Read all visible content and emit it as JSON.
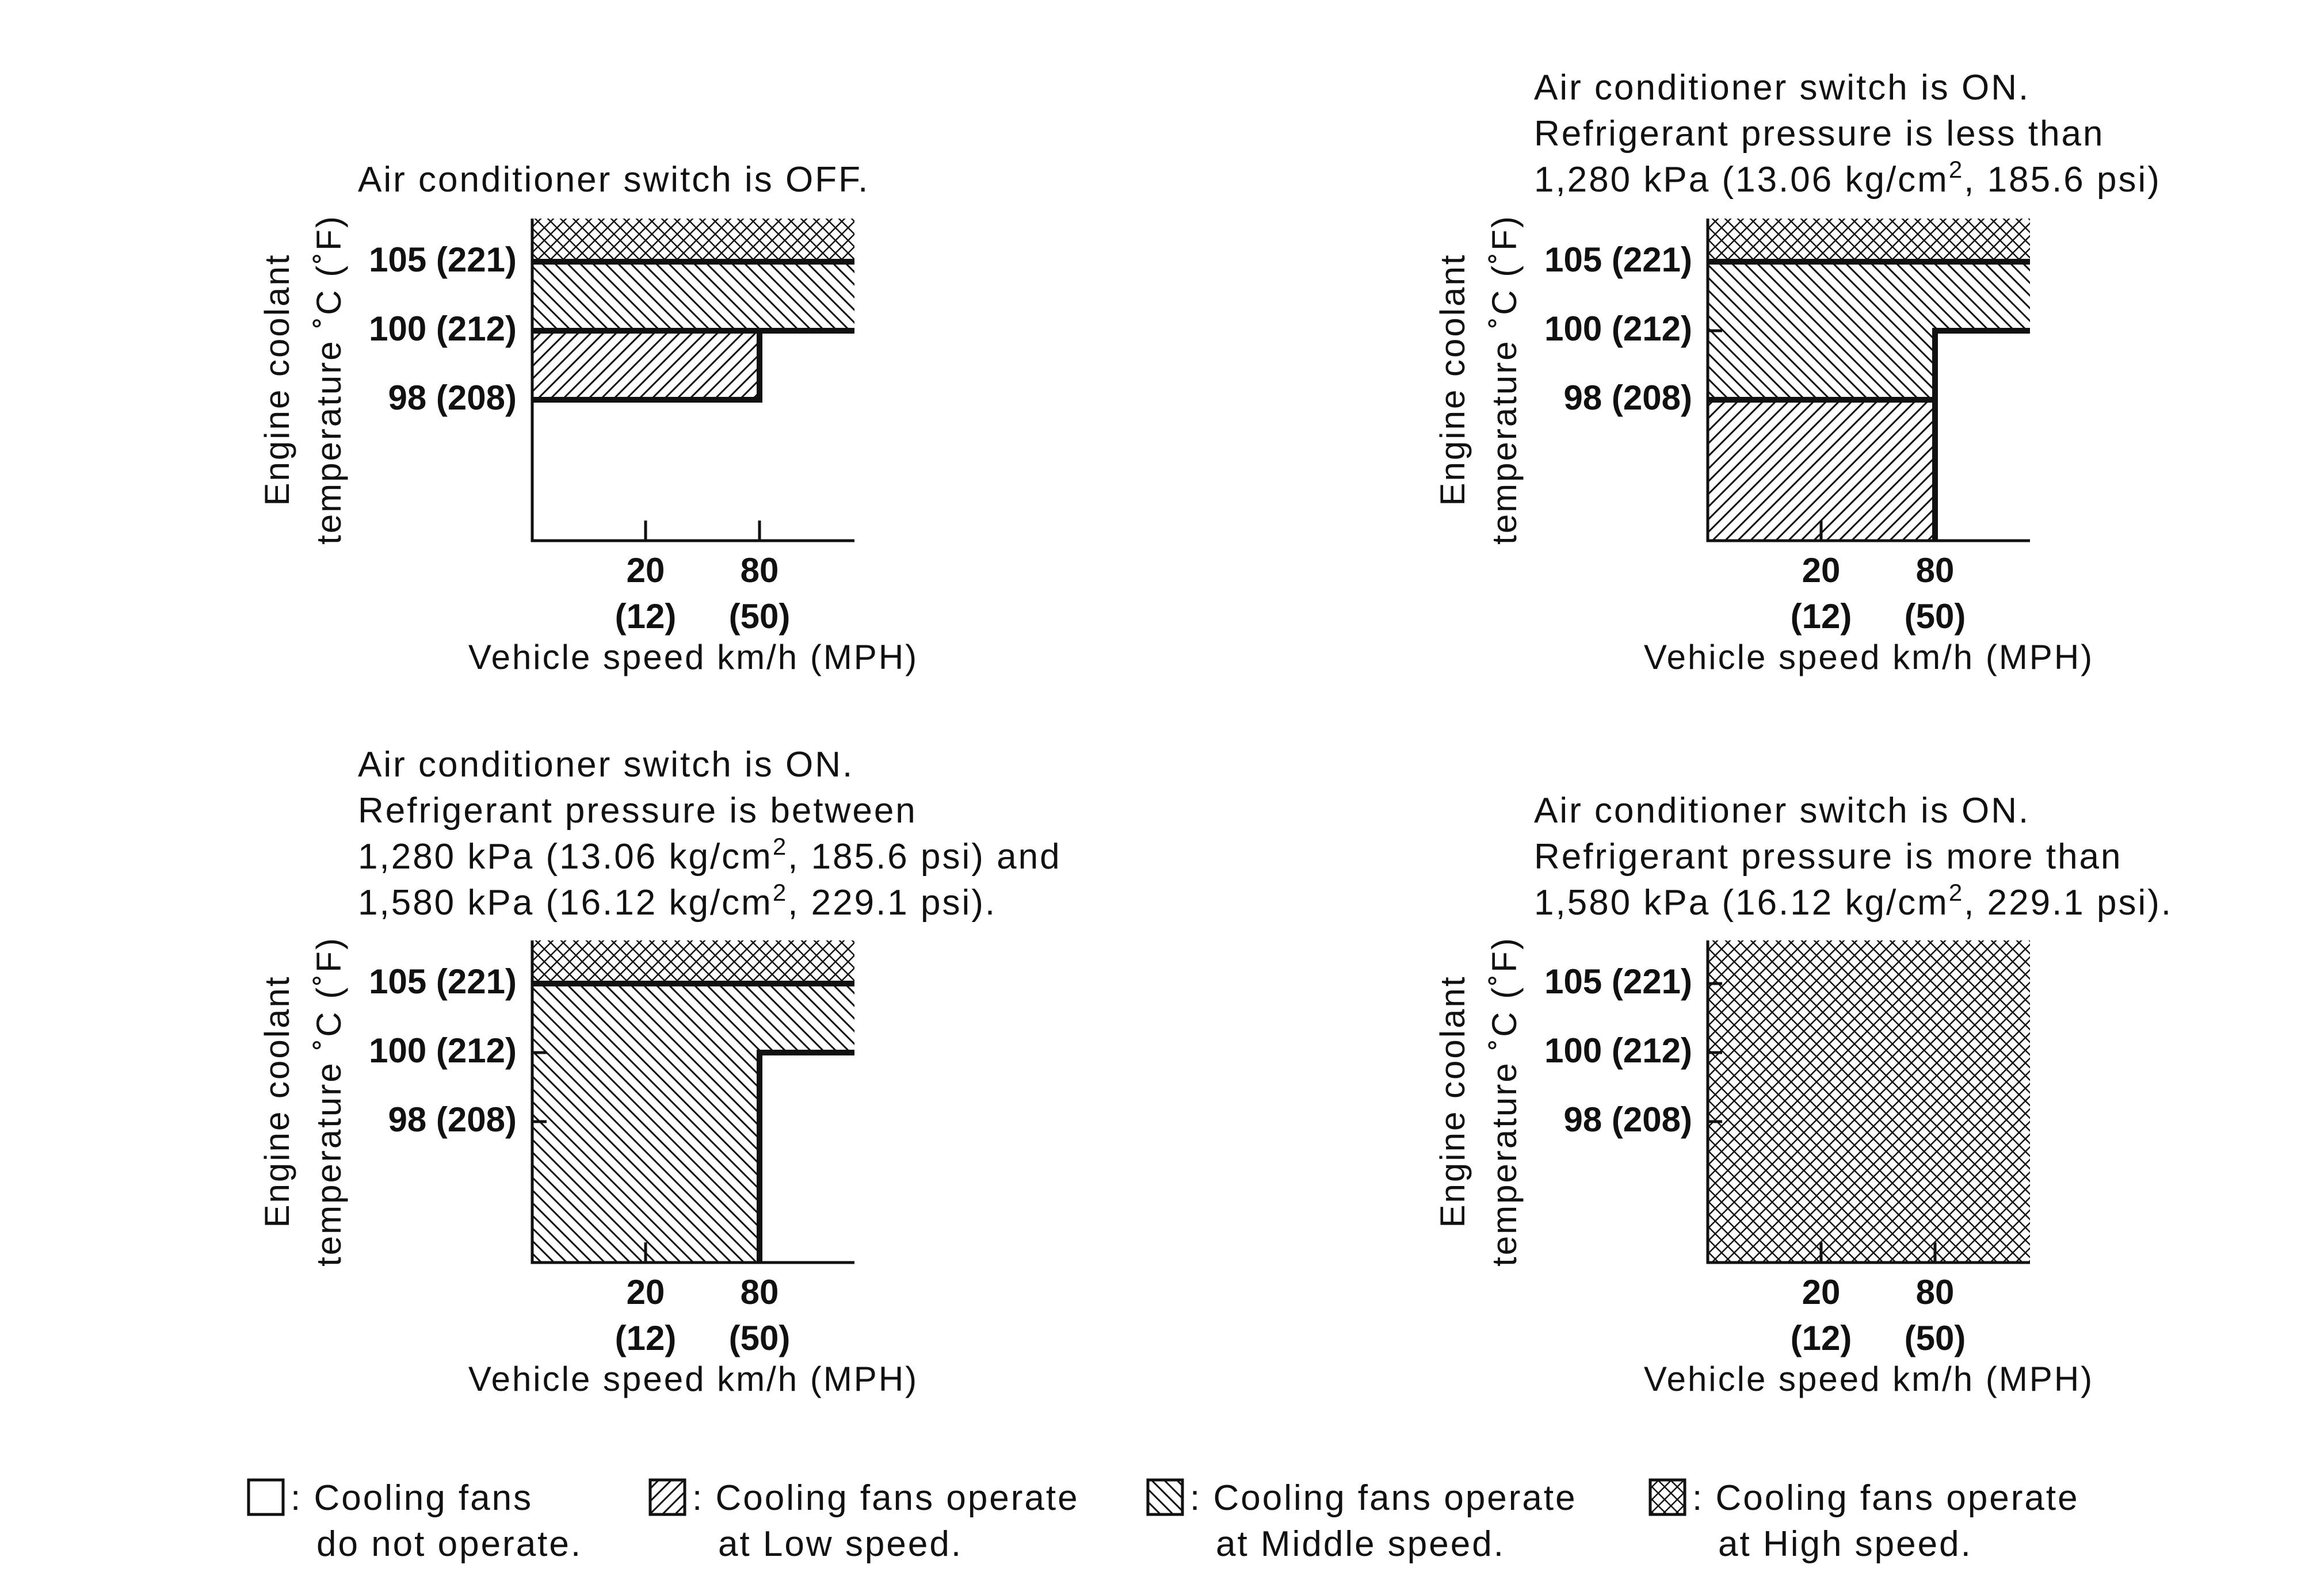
{
  "diagram": {
    "charts": [
      {
        "id": "ac-off",
        "caption": [
          "Air conditioner switch is OFF."
        ],
        "zones": [
          {
            "mode": "high",
            "temp_range": [
              105,
              null
            ],
            "speed_range": [
              0,
              null
            ]
          },
          {
            "mode": "middle",
            "temp_range": [
              100,
              105
            ],
            "speed_range": [
              0,
              null
            ]
          },
          {
            "mode": "middle",
            "temp_range": [
              100,
              105
            ],
            "speed_range": [
              0,
              null
            ]
          },
          {
            "mode": "low",
            "temp_range": [
              98,
              100
            ],
            "speed_range": [
              0,
              80
            ]
          }
        ],
        "boundaries": [
          "105 all speeds",
          "100 all speeds",
          "step at 80 km/h",
          "98 below 80 km/h"
        ]
      },
      {
        "id": "ac-on-low-pressure",
        "caption": [
          "Air conditioner switch is ON.",
          "Refrigerant pressure is less than",
          "1,280 kPa (13.06 kg/cm",
          "2",
          ", 185.6 psi)"
        ],
        "zones": [
          {
            "mode": "high",
            "temp_range": [
              105,
              null
            ],
            "speed_range": [
              0,
              null
            ]
          },
          {
            "mode": "middle",
            "temp_range": [
              100,
              105
            ],
            "speed_range": [
              0,
              null
            ]
          },
          {
            "mode": "middle",
            "temp_range": [
              98,
              100
            ],
            "speed_range": [
              0,
              80
            ]
          },
          {
            "mode": "low",
            "temp_range": [
              null,
              98
            ],
            "speed_range": [
              0,
              80
            ]
          }
        ]
      },
      {
        "id": "ac-on-mid-pressure",
        "caption": [
          "Air conditioner switch is ON.",
          "Refrigerant pressure is between",
          "1,280 kPa (13.06 kg/cm",
          "2",
          ", 185.6 psi) and",
          "1,580 kPa (16.12 kg/cm",
          "2",
          ", 229.1 psi)."
        ],
        "zones": [
          {
            "mode": "high",
            "temp_range": [
              105,
              null
            ],
            "speed_range": [
              0,
              null
            ]
          },
          {
            "mode": "middle",
            "temp_range": [
              100,
              105
            ],
            "speed_range": [
              0,
              null
            ]
          },
          {
            "mode": "middle",
            "temp_range": [
              null,
              100
            ],
            "speed_range": [
              0,
              80
            ]
          }
        ]
      },
      {
        "id": "ac-on-high-pressure",
        "caption": [
          "Air conditioner switch is ON.",
          "Refrigerant pressure is more than",
          "1,580 kPa (16.12 kg/cm",
          "2",
          ", 229.1 psi)."
        ],
        "zones": [
          {
            "mode": "high",
            "temp_range": [
              null,
              null
            ],
            "speed_range": [
              0,
              null
            ]
          }
        ]
      }
    ],
    "y_axis": {
      "label_line1": "Engine coolant",
      "label_line2": "temperature ˚C (˚F)",
      "ticks": [
        "105 (221)",
        "100 (212)",
        "98 (208)"
      ]
    },
    "x_axis": {
      "label": "Vehicle speed km/h (MPH)",
      "ticks": [
        {
          "kmh": "20",
          "mph": "(12)"
        },
        {
          "kmh": "80",
          "mph": "(50)"
        }
      ]
    },
    "legend": [
      {
        "pattern": "none",
        "line1": ": Cooling fans",
        "line2": "do not operate."
      },
      {
        "pattern": "low",
        "line1": ": Cooling fans operate",
        "line2": "at Low speed."
      },
      {
        "pattern": "middle",
        "line1": ": Cooling fans operate",
        "line2": "at Middle speed."
      },
      {
        "pattern": "high",
        "line1": ": Cooling fans operate",
        "line2": "at High speed."
      }
    ]
  }
}
